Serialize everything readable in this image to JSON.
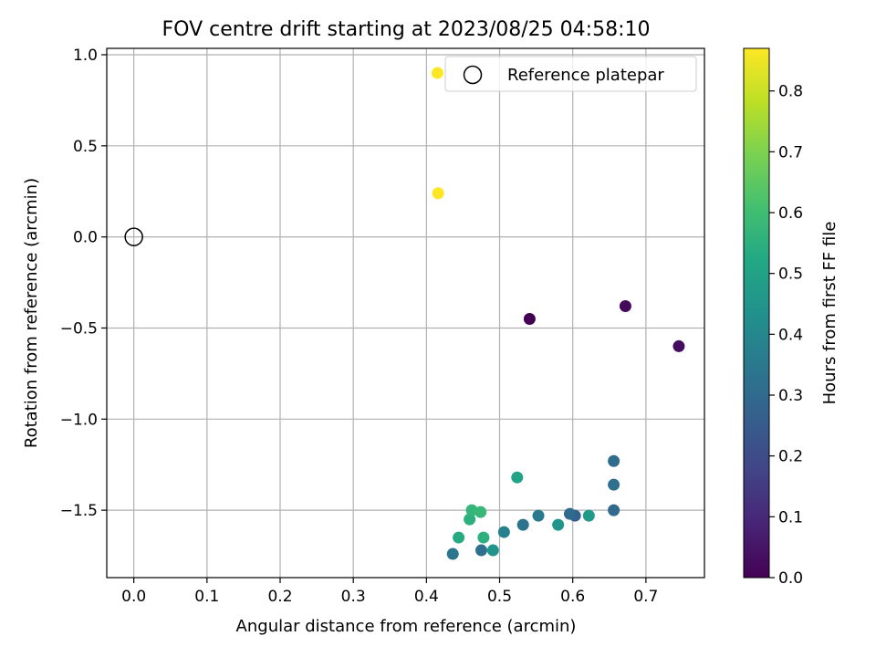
{
  "chart_data": {
    "type": "scatter",
    "title": "FOV centre drift starting at 2023/08/25 04:58:10",
    "xlabel": "Angular distance from reference (arcmin)",
    "ylabel": "Rotation from reference (arcmin)",
    "xlim": [
      -0.037,
      0.78
    ],
    "ylim": [
      -1.87,
      1.035
    ],
    "xticks": [
      0.0,
      0.1,
      0.2,
      0.3,
      0.4,
      0.5,
      0.6,
      0.7
    ],
    "xtick_labels": [
      "0.0",
      "0.1",
      "0.2",
      "0.3",
      "0.4",
      "0.5",
      "0.6",
      "0.7"
    ],
    "yticks": [
      -1.5,
      -1.0,
      -0.5,
      0.0,
      0.5,
      1.0
    ],
    "ytick_labels": [
      "−1.5",
      "−1.0",
      "−0.5",
      "0.0",
      "0.5",
      "1.0"
    ],
    "grid": true,
    "legend_placement": "top-right",
    "reference": {
      "name": "Reference platepar",
      "x": 0.0,
      "y": 0.0
    },
    "colorbar": {
      "label": "Hours from first FF file",
      "min": 0.0,
      "max": 0.87,
      "ticks": [
        0.0,
        0.1,
        0.2,
        0.3,
        0.4,
        0.5,
        0.6,
        0.7,
        0.8
      ],
      "tick_labels": [
        "0.0",
        "0.1",
        "0.2",
        "0.3",
        "0.4",
        "0.5",
        "0.6",
        "0.7",
        "0.8"
      ],
      "colormap": "viridis"
    },
    "points": [
      {
        "x": 0.541,
        "y": -0.45,
        "hours": 0.0
      },
      {
        "x": 0.672,
        "y": -0.38,
        "hours": 0.02
      },
      {
        "x": 0.745,
        "y": -0.6,
        "hours": 0.03
      },
      {
        "x": 0.656,
        "y": -1.23,
        "hours": 0.31
      },
      {
        "x": 0.656,
        "y": -1.36,
        "hours": 0.32
      },
      {
        "x": 0.656,
        "y": -1.5,
        "hours": 0.3
      },
      {
        "x": 0.603,
        "y": -1.53,
        "hours": 0.26
      },
      {
        "x": 0.596,
        "y": -1.52,
        "hours": 0.3
      },
      {
        "x": 0.553,
        "y": -1.53,
        "hours": 0.35
      },
      {
        "x": 0.532,
        "y": -1.58,
        "hours": 0.33
      },
      {
        "x": 0.506,
        "y": -1.62,
        "hours": 0.38
      },
      {
        "x": 0.475,
        "y": -1.72,
        "hours": 0.32
      },
      {
        "x": 0.436,
        "y": -1.74,
        "hours": 0.34
      },
      {
        "x": 0.491,
        "y": -1.72,
        "hours": 0.45
      },
      {
        "x": 0.58,
        "y": -1.58,
        "hours": 0.45
      },
      {
        "x": 0.622,
        "y": -1.53,
        "hours": 0.47
      },
      {
        "x": 0.524,
        "y": -1.32,
        "hours": 0.5
      },
      {
        "x": 0.444,
        "y": -1.65,
        "hours": 0.53
      },
      {
        "x": 0.478,
        "y": -1.65,
        "hours": 0.55
      },
      {
        "x": 0.459,
        "y": -1.55,
        "hours": 0.55
      },
      {
        "x": 0.462,
        "y": -1.5,
        "hours": 0.57
      },
      {
        "x": 0.474,
        "y": -1.51,
        "hours": 0.58
      },
      {
        "x": 0.416,
        "y": 0.24,
        "hours": 0.87
      },
      {
        "x": 0.415,
        "y": 0.9,
        "hours": 0.87
      }
    ]
  }
}
